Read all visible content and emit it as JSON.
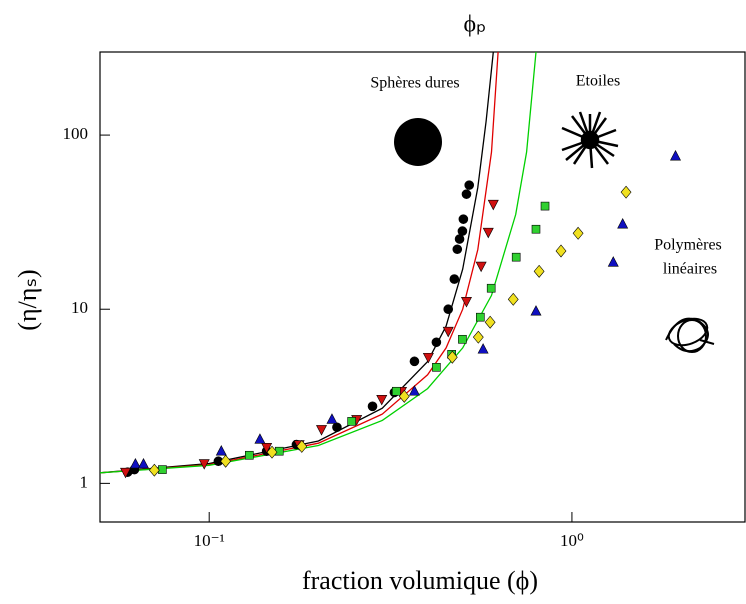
{
  "chart_data": {
    "type": "scatter",
    "xlabel": "fraction volumique (ϕ)",
    "ylabel": "(η/ηₛ)",
    "annotations": [
      "ϕₚ",
      "Sphères dures",
      "Etoiles",
      "Polymères",
      "linéaires"
    ],
    "xscale": "log",
    "yscale": "log",
    "xlim": [
      0.05,
      3
    ],
    "ylim": [
      0.6,
      300
    ],
    "xticks": [
      {
        "value": 0.1,
        "label": "10⁻¹"
      },
      {
        "value": 1,
        "label": "10⁰"
      }
    ],
    "yticks": [
      1,
      10,
      100
    ],
    "curves": [
      {
        "color": "#000000",
        "x": [
          0.05,
          0.1,
          0.2,
          0.3,
          0.4,
          0.45,
          0.5,
          0.55,
          0.58,
          0.607
        ],
        "values": [
          1.15,
          1.3,
          1.75,
          2.7,
          5,
          8,
          17,
          50,
          120,
          300
        ]
      },
      {
        "color": "#e00000",
        "x": [
          0.05,
          0.1,
          0.2,
          0.3,
          0.4,
          0.45,
          0.5,
          0.55,
          0.6,
          0.626
        ],
        "values": [
          1.15,
          1.28,
          1.7,
          2.5,
          4.2,
          6,
          10,
          22,
          80,
          300
        ]
      },
      {
        "color": "#00d000",
        "x": [
          0.05,
          0.1,
          0.2,
          0.3,
          0.4,
          0.5,
          0.6,
          0.7,
          0.75,
          0.796
        ],
        "values": [
          1.15,
          1.27,
          1.65,
          2.3,
          3.5,
          6,
          12,
          35,
          80,
          300
        ]
      }
    ],
    "series": [
      {
        "marker": "circle",
        "color": "#000000",
        "x": [
          0.0596,
          0.0622,
          0.106,
          0.144,
          0.174,
          0.225,
          0.282,
          0.324,
          0.368,
          0.423,
          0.456,
          0.474,
          0.483,
          0.49,
          0.499,
          0.502,
          0.512,
          0.521
        ],
        "values": [
          1.16,
          1.2,
          1.34,
          1.53,
          1.67,
          2.1,
          2.77,
          3.33,
          5.02,
          6.46,
          10,
          14.9,
          22.1,
          25.3,
          28.1,
          32.9,
          45.8,
          51.6
        ]
      },
      {
        "marker": "triangle-down",
        "color": "#d01010",
        "x": [
          0.0588,
          0.0969,
          0.144,
          0.177,
          0.204,
          0.255,
          0.299,
          0.339,
          0.402,
          0.456,
          0.512,
          0.562,
          0.588,
          0.607
        ],
        "values": [
          1.16,
          1.3,
          1.61,
          1.67,
          2.04,
          2.33,
          3.04,
          3.38,
          5.3,
          7.48,
          11.1,
          17.7,
          27.7,
          40.1
        ]
      },
      {
        "marker": "square",
        "color": "#30d030",
        "x": [
          0.0743,
          0.129,
          0.156,
          0.247,
          0.328,
          0.423,
          0.466,
          0.499,
          0.559,
          0.599,
          0.702,
          0.796,
          0.843
        ],
        "values": [
          1.2,
          1.45,
          1.53,
          2.27,
          3.38,
          4.64,
          5.51,
          6.72,
          9,
          13.2,
          19.9,
          28.8,
          39.1
        ]
      },
      {
        "marker": "triangle-up",
        "color": "#1010c0",
        "x": [
          0.0626,
          0.0659,
          0.108,
          0.138,
          0.218,
          0.368,
          0.569,
          0.796,
          1.3,
          1.38,
          1.93
        ],
        "values": [
          1.29,
          1.29,
          1.53,
          1.79,
          2.33,
          3.38,
          5.89,
          9.74,
          18.6,
          30.8,
          75.7
        ]
      },
      {
        "marker": "diamond",
        "color": "#f0e020",
        "x": [
          0.0706,
          0.111,
          0.149,
          0.18,
          0.345,
          0.468,
          0.552,
          0.595,
          0.689,
          0.812,
          0.933,
          1.04,
          1.41
        ],
        "values": [
          1.19,
          1.34,
          1.51,
          1.63,
          3.16,
          5.3,
          6.91,
          8.42,
          11.4,
          16.5,
          21.6,
          27.3,
          47
        ]
      }
    ]
  }
}
